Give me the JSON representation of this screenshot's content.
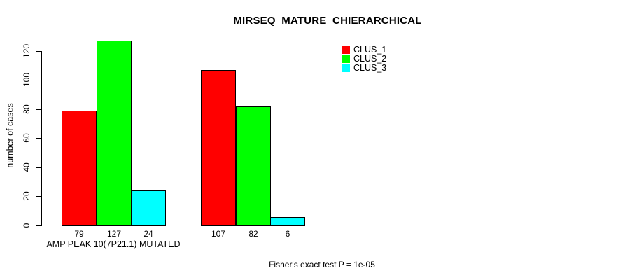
{
  "title": "MIRSEQ_MATURE_CHIERARCHICAL",
  "footnote": "Fisher's exact test P = 1e-05",
  "chart_data": {
    "type": "bar",
    "title": "MIRSEQ_MATURE_CHIERARCHICAL",
    "xlabel": "",
    "ylabel": "number of cases",
    "ylim": [
      0,
      120
    ],
    "yticks": [
      0,
      20,
      40,
      60,
      80,
      100,
      120
    ],
    "grid": false,
    "legend_position": "top-right",
    "show_bar_values": true,
    "series": [
      {
        "name": "CLUS_1",
        "color": "#ff0000"
      },
      {
        "name": "CLUS_2",
        "color": "#00ff00"
      },
      {
        "name": "CLUS_3",
        "color": "#00ffff"
      }
    ],
    "groups": [
      {
        "label": "AMP PEAK 10(7P21.1) MUTATED",
        "values": [
          79,
          127,
          24
        ]
      },
      {
        "label": "",
        "values": [
          107,
          82,
          6
        ]
      }
    ],
    "footnote": "Fisher's exact test P = 1e-05",
    "axis_color": "#000000",
    "bar_border_color": "#000000"
  }
}
